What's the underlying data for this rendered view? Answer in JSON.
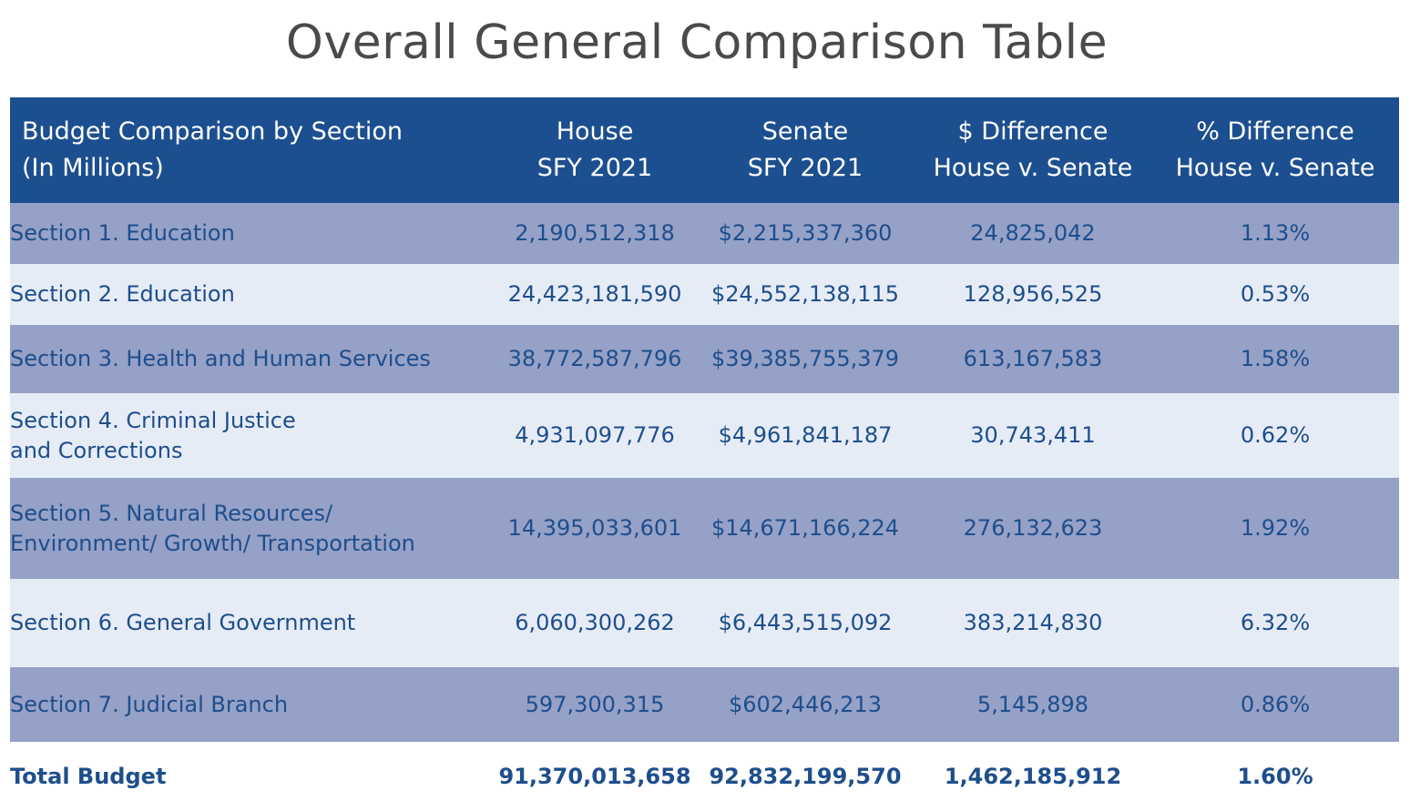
{
  "title": "Overall General Comparison Table",
  "table": {
    "headers": [
      [
        "Budget Comparison by Section",
        "(In Millions)"
      ],
      [
        "House",
        "SFY 2021"
      ],
      [
        "Senate",
        "SFY 2021"
      ],
      [
        "$ Difference",
        "House v. Senate"
      ],
      [
        "% Difference",
        "House v. Senate"
      ]
    ],
    "rows": [
      {
        "section": [
          "Section 1. Education"
        ],
        "house": "2,190,512,318",
        "senate": "$2,215,337,360",
        "diff": "24,825,042",
        "pct": "1.13%"
      },
      {
        "section": [
          "Section 2. Education"
        ],
        "house": "24,423,181,590",
        "senate": "$24,552,138,115",
        "diff": "128,956,525",
        "pct": "0.53%"
      },
      {
        "section": [
          "Section 3. Health and Human Services"
        ],
        "house": "38,772,587,796",
        "senate": "$39,385,755,379",
        "diff": "613,167,583",
        "pct": "1.58%"
      },
      {
        "section": [
          "Section 4. Criminal Justice",
          "and Corrections"
        ],
        "house": "4,931,097,776",
        "senate": "$4,961,841,187",
        "diff": "30,743,411",
        "pct": "0.62%"
      },
      {
        "section": [
          "Section 5. Natural Resources/",
          "Environment/ Growth/ Transportation"
        ],
        "house": "14,395,033,601",
        "senate": "$14,671,166,224",
        "diff": "276,132,623",
        "pct": "1.92%"
      },
      {
        "section": [
          "Section 6. General Government"
        ],
        "house": "6,060,300,262",
        "senate": "$6,443,515,092",
        "diff": "383,214,830",
        "pct": "6.32%"
      },
      {
        "section": [
          "Section 7. Judicial Branch"
        ],
        "house": "597,300,315",
        "senate": "$602,446,213",
        "diff": "5,145,898",
        "pct": "0.86%"
      }
    ],
    "total": {
      "label": "Total Budget",
      "house": "91,370,013,658",
      "senate": "92,832,199,570",
      "diff": "1,462,185,912",
      "pct": "1.60%"
    }
  },
  "colors": {
    "title": "#4a4a4a",
    "header_bg": "#1c4f8f",
    "band_dark": "#95a1c6",
    "band_light": "#e6ecf6",
    "text_blue": "#1e4e8c"
  }
}
